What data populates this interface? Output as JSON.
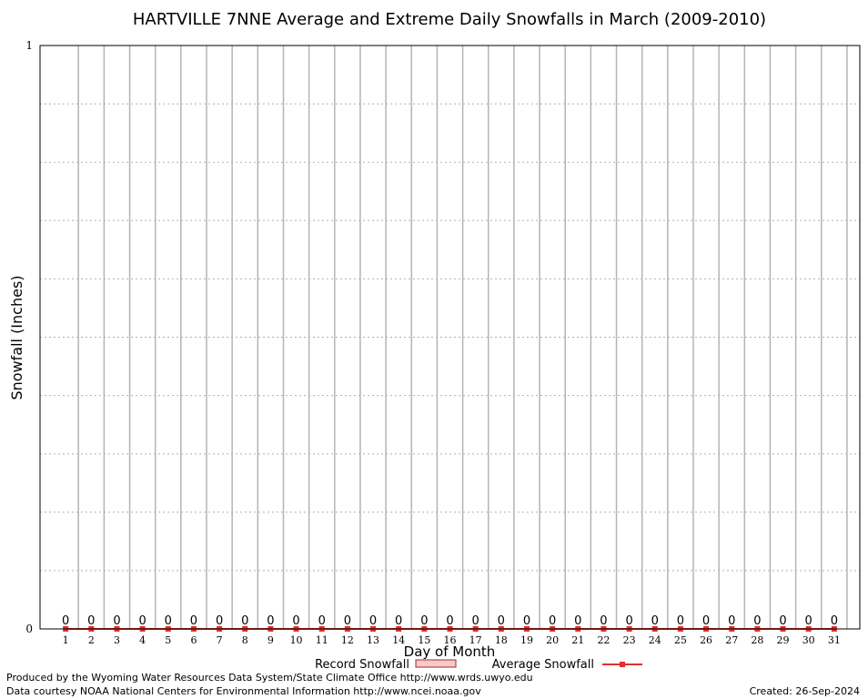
{
  "chart_data": {
    "type": "bar",
    "title": "HARTVILLE 7NNE Average and Extreme Daily Snowfalls in March (2009-2010)",
    "xlabel": "Day of Month",
    "ylabel": "Snowfall (Inches)",
    "ylim": [
      0,
      1
    ],
    "yticks": [
      "0",
      "1"
    ],
    "grid": true,
    "legend_position": "bottom",
    "categories": [
      "1",
      "2",
      "3",
      "4",
      "5",
      "6",
      "7",
      "8",
      "9",
      "10",
      "11",
      "12",
      "13",
      "14",
      "15",
      "16",
      "17",
      "18",
      "19",
      "20",
      "21",
      "22",
      "23",
      "24",
      "25",
      "26",
      "27",
      "28",
      "29",
      "30",
      "31"
    ],
    "series": [
      {
        "name": "Record Snowfall",
        "type": "bar",
        "color": "#a52a2a",
        "values": [
          0,
          0,
          0,
          0,
          0,
          0,
          0,
          0,
          0,
          0,
          0,
          0,
          0,
          0,
          0,
          0,
          0,
          0,
          0,
          0,
          0,
          0,
          0,
          0,
          0,
          0,
          0,
          0,
          0,
          0,
          0
        ]
      },
      {
        "name": "Average Snowfall",
        "type": "line",
        "color": "#e03030",
        "values": [
          0,
          0,
          0,
          0,
          0,
          0,
          0,
          0,
          0,
          0,
          0,
          0,
          0,
          0,
          0,
          0,
          0,
          0,
          0,
          0,
          0,
          0,
          0,
          0,
          0,
          0,
          0,
          0,
          0,
          0,
          0
        ]
      }
    ],
    "data_labels": [
      "0",
      "0",
      "0",
      "0",
      "0",
      "0",
      "0",
      "0",
      "0",
      "0",
      "0",
      "0",
      "0",
      "0",
      "0",
      "0",
      "0",
      "0",
      "0",
      "0",
      "0",
      "0",
      "0",
      "0",
      "0",
      "0",
      "0",
      "0",
      "0",
      "0",
      "0"
    ]
  },
  "footer": {
    "produced_by": "Produced by the Wyoming Water Resources Data System/State Climate Office http://www.wrds.uwyo.edu",
    "courtesy": "Data courtesy NOAA National Centers for Environmental Information http://www.ncei.noaa.gov",
    "created": "Created:  26-Sep-2024"
  }
}
